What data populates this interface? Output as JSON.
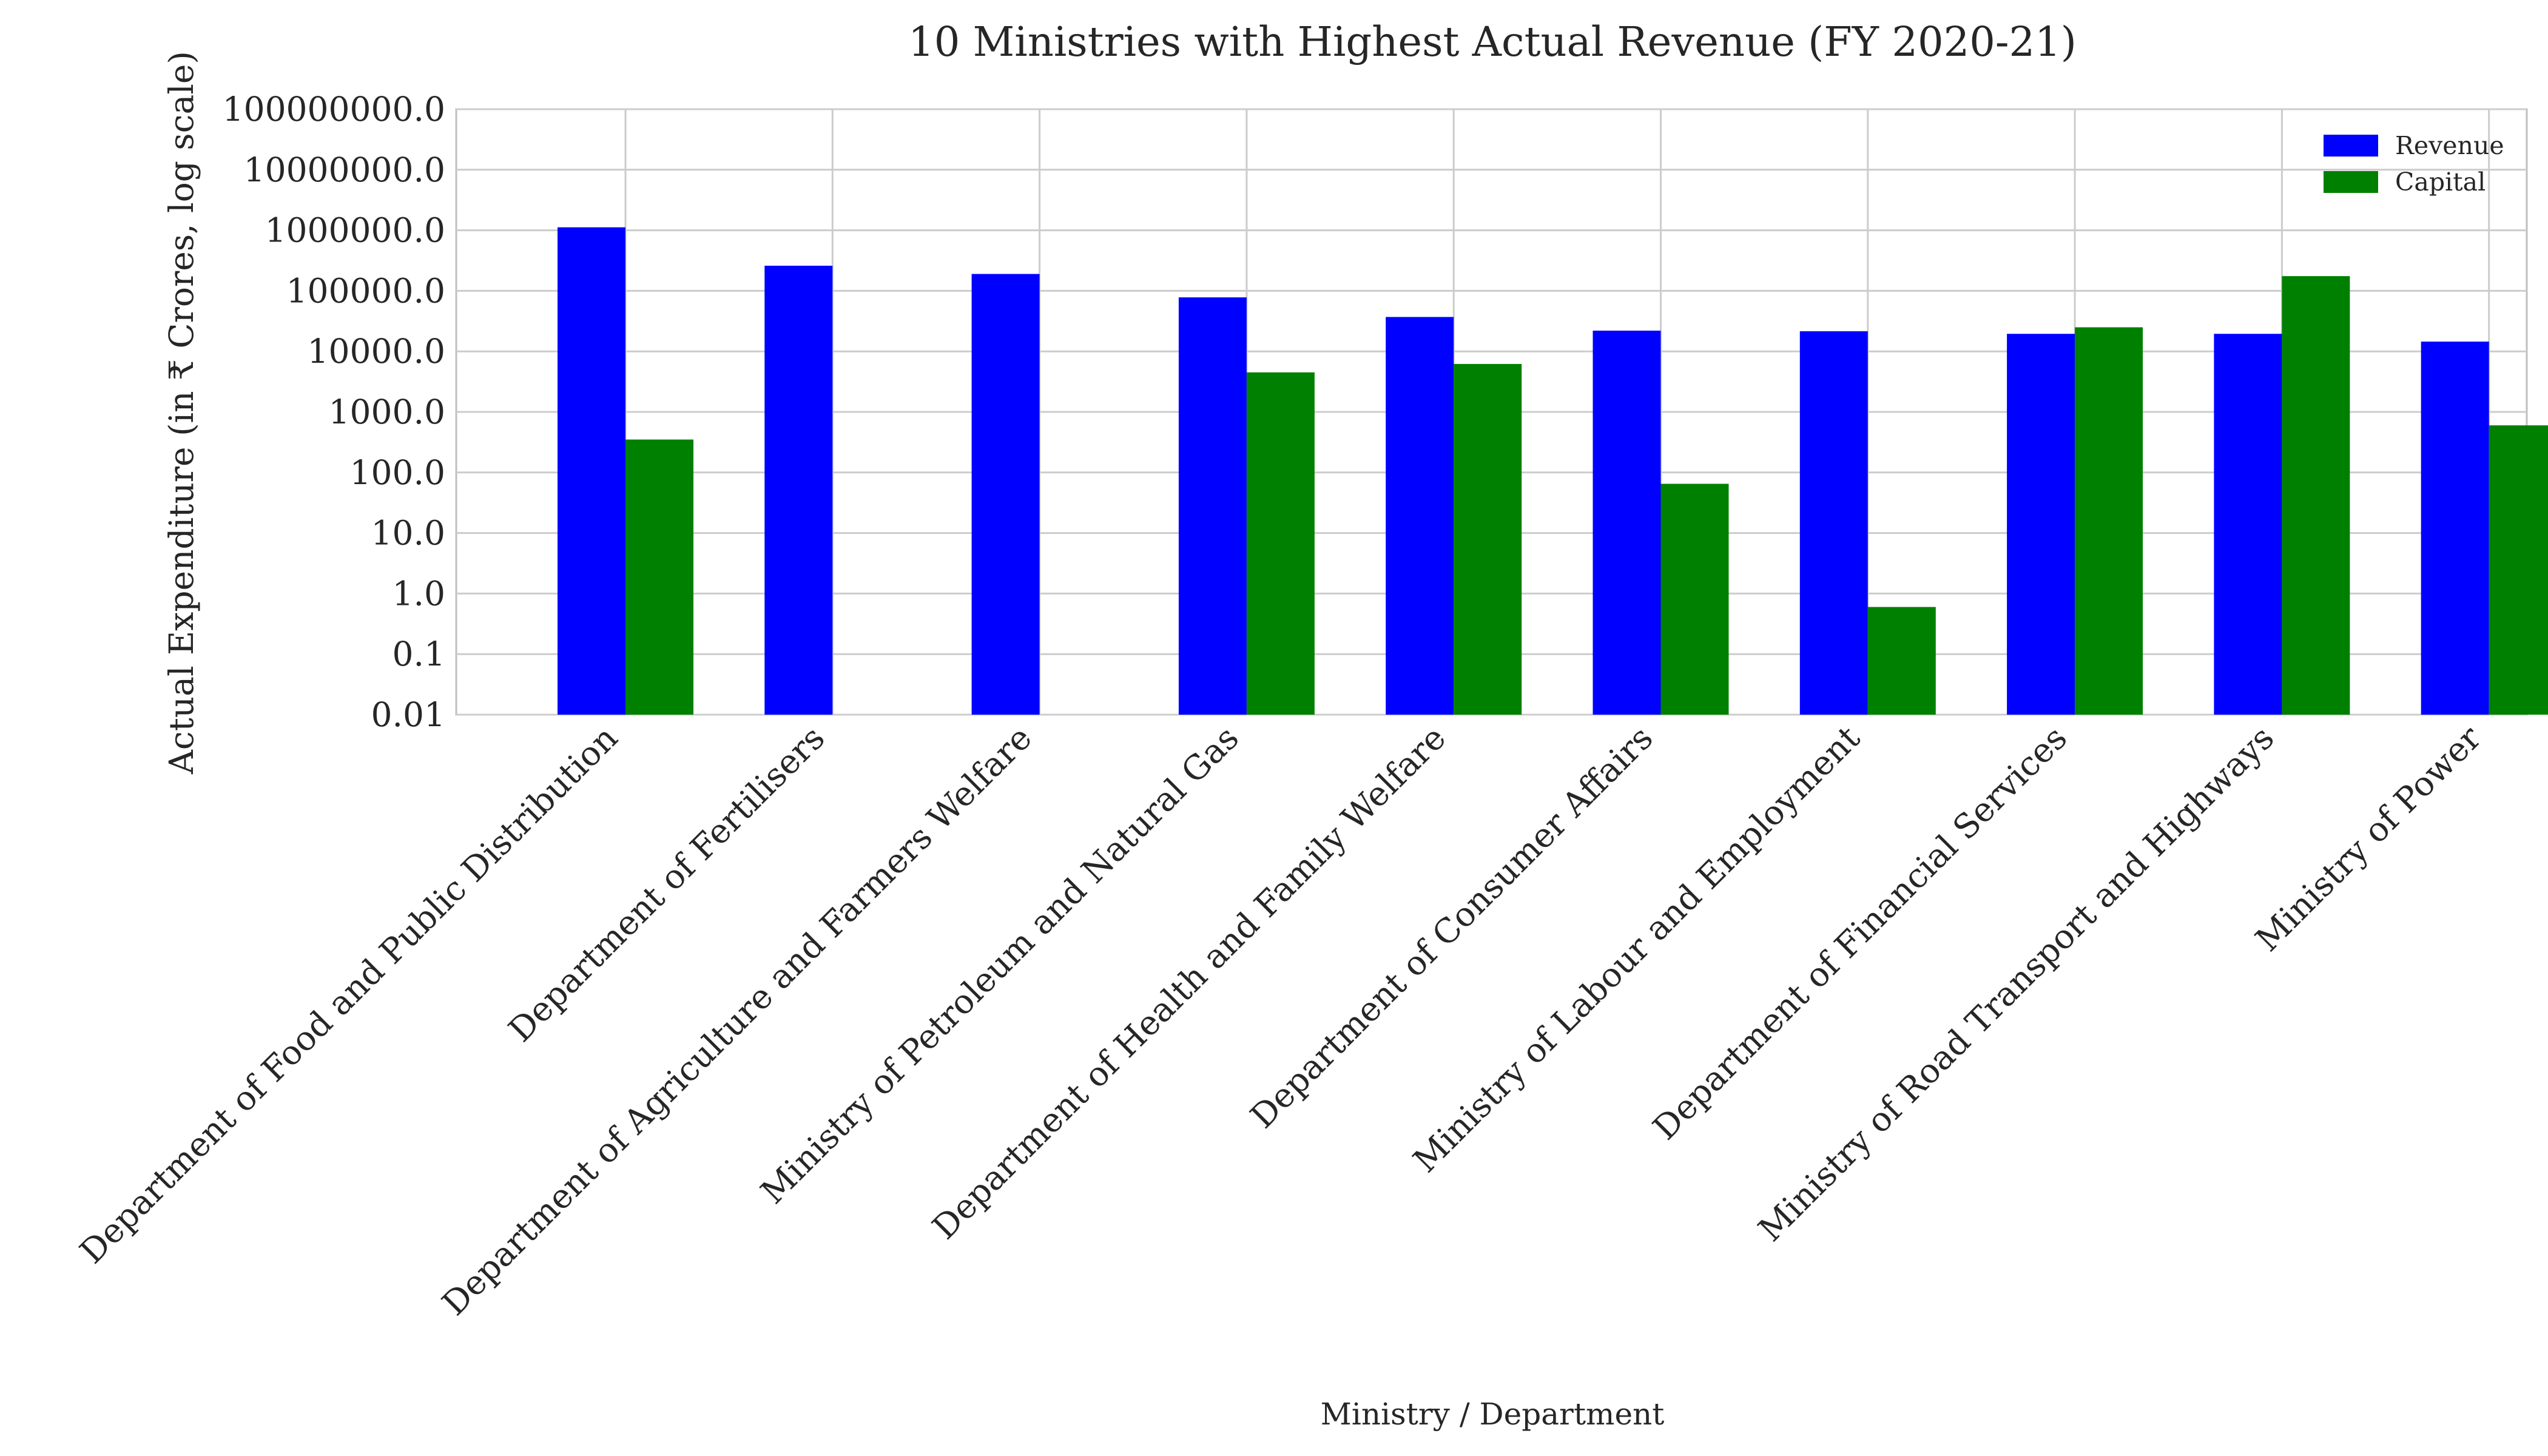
{
  "chart_data": {
    "type": "bar",
    "title": "10 Ministries with Highest Actual Revenue (FY 2020-21)",
    "xlabel": "Ministry / Department",
    "ylabel": "Actual Expenditure (in ₹ Crores, log scale)",
    "yscale": "log",
    "ylim": [
      0.01,
      100000000
    ],
    "yticks": [
      {
        "value": 0.01,
        "label": "0.01"
      },
      {
        "value": 0.1,
        "label": "0.1"
      },
      {
        "value": 1,
        "label": "1.0"
      },
      {
        "value": 10,
        "label": "10.0"
      },
      {
        "value": 100,
        "label": "100.0"
      },
      {
        "value": 1000,
        "label": "1000.0"
      },
      {
        "value": 10000,
        "label": "10000.0"
      },
      {
        "value": 100000,
        "label": "100000.0"
      },
      {
        "value": 1000000,
        "label": "1000000.0"
      },
      {
        "value": 10000000,
        "label": "10000000.0"
      },
      {
        "value": 100000000,
        "label": "100000000.0"
      }
    ],
    "grid": true,
    "legend_position": "top-right",
    "categories": [
      "Department of Food and Public Distribution",
      "Department of Fertilisers",
      "Department of Agriculture and Farmers Welfare",
      "Ministry of Petroleum and Natural Gas",
      "Department of Health and Family Welfare",
      "Department of Consumer Affairs",
      "Ministry of Labour and Employment",
      "Department of Financial Services",
      "Ministry of Road Transport and Highways",
      "Ministry of Power"
    ],
    "series": [
      {
        "name": "Revenue",
        "color": "#0000ff",
        "values": [
          1120000,
          260000,
          190000,
          78000,
          37000,
          22000,
          21500,
          19500,
          19500,
          14500
        ]
      },
      {
        "name": "Capital",
        "color": "#008000",
        "values": [
          350,
          0,
          0,
          4500,
          6200,
          65,
          0.6,
          25000,
          175000,
          600
        ]
      }
    ]
  }
}
